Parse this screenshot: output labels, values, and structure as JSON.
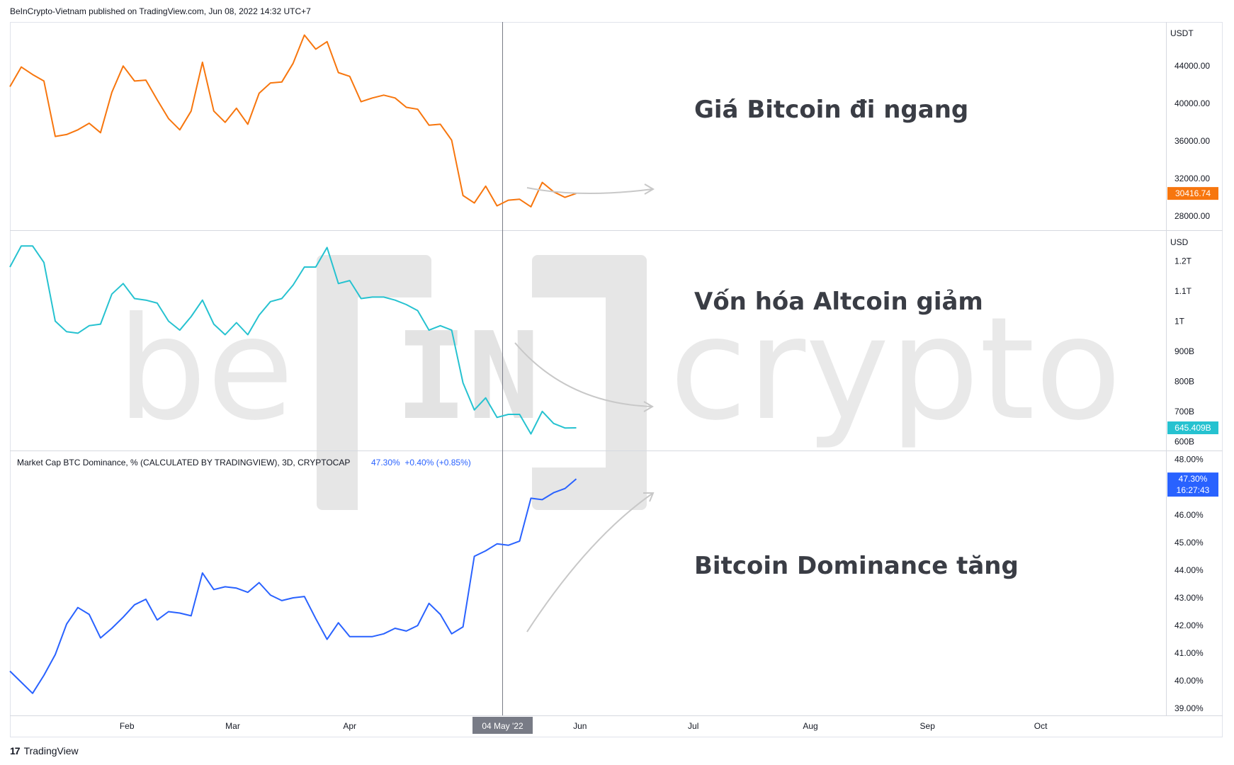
{
  "header": {
    "publisher_line": "BeInCrypto-Vietnam published on TradingView.com, Jun 08, 2022 14:32 UTC+7"
  },
  "footer": {
    "brand": "TradingView",
    "logo_icon": "tradingview-logo-icon"
  },
  "watermark": {
    "left_text": "be",
    "mark_text": "IN",
    "right_text": "crypto"
  },
  "colors": {
    "btc_price": "#f7760e",
    "altcoin_cap": "#26c2d0",
    "btc_dominance": "#2962ff",
    "grid_border": "#e0e3eb",
    "crosshair": "#787b86",
    "annotation": "#3a3d45",
    "arrow": "#c8c8c8"
  },
  "x_axis": {
    "tick_labels": [
      "Feb",
      "Mar",
      "Apr",
      "May",
      "Jun",
      "Jul",
      "Aug",
      "Sep",
      "Oct"
    ],
    "crosshair_label": "04 May '22"
  },
  "annotations": {
    "btc_price": "Giá Bitcoin đi ngang",
    "altcoin_cap": "Vốn hóa Altcoin giảm",
    "btc_dominance": "Bitcoin Dominance tăng"
  },
  "chart_data": [
    {
      "type": "line",
      "pane": "top",
      "unit_label": "USDT",
      "ylim": [
        26500,
        48700
      ],
      "y_tick_values": [
        28000,
        32000,
        36000,
        40000,
        44000
      ],
      "y_tick_labels": [
        "28000.00",
        "32000.00",
        "36000.00",
        "40000.00",
        "44000.00"
      ],
      "last_value_label": "30416.74",
      "series": [
        {
          "color": "#f7760e",
          "points": [
            [
              "2022-01-01",
              41800
            ],
            [
              "2022-01-04",
              43900
            ],
            [
              "2022-01-07",
              43100
            ],
            [
              "2022-01-10",
              42400
            ],
            [
              "2022-01-13",
              36500
            ],
            [
              "2022-01-16",
              36700
            ],
            [
              "2022-01-19",
              37200
            ],
            [
              "2022-01-22",
              37900
            ],
            [
              "2022-01-25",
              36900
            ],
            [
              "2022-01-28",
              41200
            ],
            [
              "2022-01-31",
              44000
            ],
            [
              "2022-02-03",
              42400
            ],
            [
              "2022-02-06",
              42500
            ],
            [
              "2022-02-09",
              40400
            ],
            [
              "2022-02-12",
              38400
            ],
            [
              "2022-02-15",
              37200
            ],
            [
              "2022-02-18",
              39200
            ],
            [
              "2022-02-21",
              44400
            ],
            [
              "2022-02-24",
              39200
            ],
            [
              "2022-02-27",
              38000
            ],
            [
              "2022-03-02",
              39500
            ],
            [
              "2022-03-05",
              37800
            ],
            [
              "2022-03-08",
              41100
            ],
            [
              "2022-03-11",
              42200
            ],
            [
              "2022-03-14",
              42300
            ],
            [
              "2022-03-17",
              44300
            ],
            [
              "2022-03-20",
              47300
            ],
            [
              "2022-03-23",
              45800
            ],
            [
              "2022-03-26",
              46600
            ],
            [
              "2022-03-29",
              43300
            ],
            [
              "2022-04-01",
              42900
            ],
            [
              "2022-04-04",
              40200
            ],
            [
              "2022-04-07",
              40600
            ],
            [
              "2022-04-10",
              40900
            ],
            [
              "2022-04-13",
              40600
            ],
            [
              "2022-04-16",
              39600
            ],
            [
              "2022-04-19",
              39400
            ],
            [
              "2022-04-22",
              37700
            ],
            [
              "2022-04-25",
              37800
            ],
            [
              "2022-04-28",
              36100
            ],
            [
              "2022-05-01",
              30200
            ],
            [
              "2022-05-04",
              29400
            ],
            [
              "2022-05-07",
              31200
            ],
            [
              "2022-05-10",
              29100
            ],
            [
              "2022-05-13",
              29700
            ],
            [
              "2022-05-16",
              29800
            ],
            [
              "2022-05-19",
              29000
            ],
            [
              "2022-05-22",
              31600
            ],
            [
              "2022-05-25",
              30600
            ],
            [
              "2022-05-28",
              30000
            ],
            [
              "2022-05-31",
              30416.74
            ]
          ]
        }
      ]
    },
    {
      "type": "line",
      "pane": "middle",
      "unit_label": "USD",
      "ylim": [
        570,
        1300
      ],
      "y_tick_values": [
        600,
        700,
        800,
        900,
        1000,
        1100,
        1200
      ],
      "y_tick_labels": [
        "600B",
        "700B",
        "800B",
        "900B",
        "1T",
        "1.1T",
        "1.2T"
      ],
      "last_value_label": "645.409B",
      "series": [
        {
          "color": "#26c2d0",
          "points": [
            [
              "2022-01-01",
              1180
            ],
            [
              "2022-01-04",
              1250
            ],
            [
              "2022-01-07",
              1250
            ],
            [
              "2022-01-10",
              1195
            ],
            [
              "2022-01-13",
              1000
            ],
            [
              "2022-01-16",
              965
            ],
            [
              "2022-01-19",
              960
            ],
            [
              "2022-01-22",
              985
            ],
            [
              "2022-01-25",
              990
            ],
            [
              "2022-01-28",
              1090
            ],
            [
              "2022-01-31",
              1125
            ],
            [
              "2022-02-03",
              1075
            ],
            [
              "2022-02-06",
              1070
            ],
            [
              "2022-02-09",
              1060
            ],
            [
              "2022-02-12",
              1000
            ],
            [
              "2022-02-15",
              970
            ],
            [
              "2022-02-18",
              1015
            ],
            [
              "2022-02-21",
              1070
            ],
            [
              "2022-02-24",
              990
            ],
            [
              "2022-02-27",
              955
            ],
            [
              "2022-03-02",
              995
            ],
            [
              "2022-03-05",
              955
            ],
            [
              "2022-03-08",
              1020
            ],
            [
              "2022-03-11",
              1065
            ],
            [
              "2022-03-14",
              1075
            ],
            [
              "2022-03-17",
              1120
            ],
            [
              "2022-03-20",
              1180
            ],
            [
              "2022-03-23",
              1180
            ],
            [
              "2022-03-26",
              1245
            ],
            [
              "2022-03-29",
              1125
            ],
            [
              "2022-04-01",
              1135
            ],
            [
              "2022-04-04",
              1075
            ],
            [
              "2022-04-07",
              1080
            ],
            [
              "2022-04-10",
              1080
            ],
            [
              "2022-04-13",
              1070
            ],
            [
              "2022-04-16",
              1055
            ],
            [
              "2022-04-19",
              1035
            ],
            [
              "2022-04-22",
              970
            ],
            [
              "2022-04-25",
              985
            ],
            [
              "2022-04-28",
              970
            ],
            [
              "2022-05-01",
              795
            ],
            [
              "2022-05-04",
              705
            ],
            [
              "2022-05-07",
              745
            ],
            [
              "2022-05-10",
              680
            ],
            [
              "2022-05-13",
              690
            ],
            [
              "2022-05-16",
              690
            ],
            [
              "2022-05-19",
              625
            ],
            [
              "2022-05-22",
              700
            ],
            [
              "2022-05-25",
              660
            ],
            [
              "2022-05-28",
              645
            ],
            [
              "2022-05-31",
              645.409
            ]
          ]
        }
      ]
    },
    {
      "type": "line",
      "pane": "bottom",
      "title": "Market Cap BTC Dominance, % (CALCULATED BY TRADINGVIEW), 3D, CRYPTOCAP",
      "legend_values": "47.30%  +0.40% (+0.85%)",
      "ylim": [
        38.75,
        48.3
      ],
      "y_tick_values": [
        39,
        40,
        41,
        42,
        43,
        44,
        45,
        46,
        47,
        48
      ],
      "y_tick_labels": [
        "39.00%",
        "40.00%",
        "41.00%",
        "42.00%",
        "43.00%",
        "44.00%",
        "45.00%",
        "46.00%",
        "47.00%",
        "48.00%"
      ],
      "last_value_label": "47.30%",
      "countdown_label": "16:27:43",
      "series": [
        {
          "color": "#2962ff",
          "points": [
            [
              "2022-01-01",
              40.35
            ],
            [
              "2022-01-04",
              39.95
            ],
            [
              "2022-01-07",
              39.55
            ],
            [
              "2022-01-10",
              40.2
            ],
            [
              "2022-01-13",
              40.95
            ],
            [
              "2022-01-16",
              42.05
            ],
            [
              "2022-01-19",
              42.65
            ],
            [
              "2022-01-22",
              42.4
            ],
            [
              "2022-01-25",
              41.55
            ],
            [
              "2022-01-28",
              41.9
            ],
            [
              "2022-01-31",
              42.3
            ],
            [
              "2022-02-03",
              42.75
            ],
            [
              "2022-02-06",
              42.95
            ],
            [
              "2022-02-09",
              42.2
            ],
            [
              "2022-02-12",
              42.5
            ],
            [
              "2022-02-15",
              42.45
            ],
            [
              "2022-02-18",
              42.35
            ],
            [
              "2022-02-21",
              43.9
            ],
            [
              "2022-02-24",
              43.3
            ],
            [
              "2022-02-27",
              43.4
            ],
            [
              "2022-03-02",
              43.35
            ],
            [
              "2022-03-05",
              43.2
            ],
            [
              "2022-03-08",
              43.55
            ],
            [
              "2022-03-11",
              43.1
            ],
            [
              "2022-03-14",
              42.9
            ],
            [
              "2022-03-17",
              43.0
            ],
            [
              "2022-03-20",
              43.05
            ],
            [
              "2022-03-23",
              42.25
            ],
            [
              "2022-03-26",
              41.5
            ],
            [
              "2022-03-29",
              42.1
            ],
            [
              "2022-04-01",
              41.6
            ],
            [
              "2022-04-04",
              41.6
            ],
            [
              "2022-04-07",
              41.6
            ],
            [
              "2022-04-10",
              41.7
            ],
            [
              "2022-04-13",
              41.9
            ],
            [
              "2022-04-16",
              41.8
            ],
            [
              "2022-04-19",
              42.0
            ],
            [
              "2022-04-22",
              42.8
            ],
            [
              "2022-04-25",
              42.4
            ],
            [
              "2022-04-28",
              41.7
            ],
            [
              "2022-05-01",
              41.95
            ],
            [
              "2022-05-04",
              44.5
            ],
            [
              "2022-05-07",
              44.7
            ],
            [
              "2022-05-10",
              44.95
            ],
            [
              "2022-05-13",
              44.9
            ],
            [
              "2022-05-16",
              45.05
            ],
            [
              "2022-05-19",
              46.6
            ],
            [
              "2022-05-22",
              46.55
            ],
            [
              "2022-05-25",
              46.8
            ],
            [
              "2022-05-28",
              46.95
            ],
            [
              "2022-05-31",
              47.3
            ]
          ]
        }
      ]
    }
  ]
}
